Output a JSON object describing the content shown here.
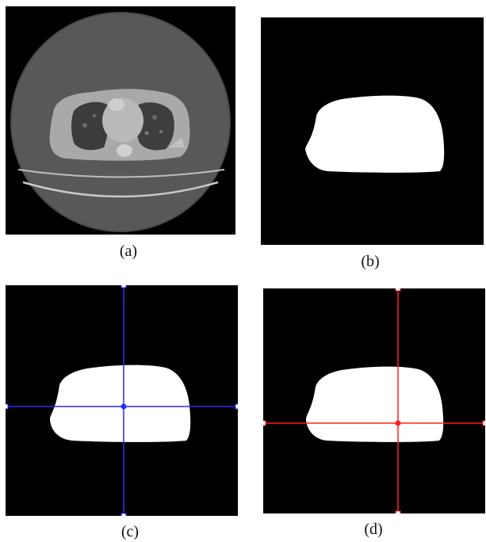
{
  "figure": {
    "panels": [
      {
        "id": "a",
        "caption": "(a)",
        "content": "ct-slice"
      },
      {
        "id": "b",
        "caption": "(b)",
        "content": "binary-mask"
      },
      {
        "id": "c",
        "caption": "(c)",
        "content": "mask-with-crosshair"
      },
      {
        "id": "d",
        "caption": "(d)",
        "content": "mask-with-crosshair"
      }
    ],
    "crosshair_colors": {
      "c": "#2a2aff",
      "d": "#ff2020"
    },
    "colors": {
      "background": "#000000",
      "mask": "#ffffff",
      "ct_field": "#555555"
    }
  }
}
